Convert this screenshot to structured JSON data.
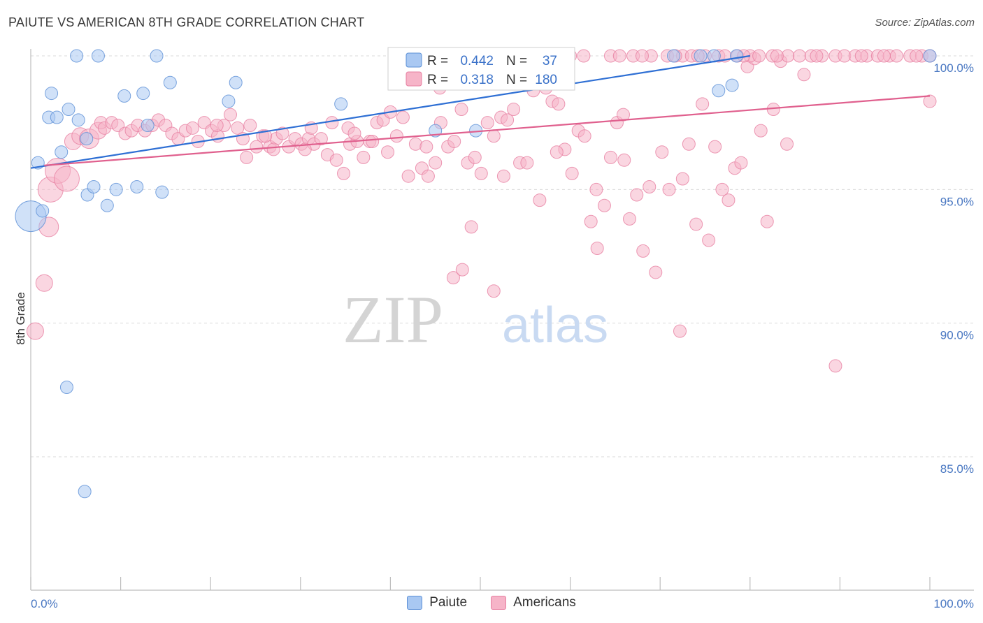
{
  "title": "PAIUTE VS AMERICAN 8TH GRADE CORRELATION CHART",
  "source": "Source: ZipAtlas.com",
  "watermark": {
    "zip": "ZIP",
    "atlas": "atlas"
  },
  "colors": {
    "paiute_fill": "#a9c8f2",
    "paiute_stroke": "#5b8fd6",
    "paiute_line": "#2e6fd4",
    "americans_fill": "#f6b4c8",
    "americans_stroke": "#e77fa1",
    "americans_line": "#e0608e",
    "tick_label": "#4a78c2",
    "grid": "#d9d9d9"
  },
  "legend": {
    "rows": [
      {
        "r_label": "R =",
        "r_value": "0.442",
        "n_label": "N =",
        "n_value": "37"
      },
      {
        "r_label": "R =",
        "r_value": "0.318",
        "n_label": "N =",
        "n_value": "180"
      }
    ]
  },
  "bottom_legend": [
    "Paiute",
    "Americans"
  ],
  "chart_data": {
    "type": "scatter",
    "title": "PAIUTE VS AMERICAN 8TH GRADE CORRELATION CHART",
    "xlabel": "",
    "ylabel": "8th Grade",
    "xlim": [
      0,
      100
    ],
    "ylim": [
      80.5,
      100.3
    ],
    "x_tick_labels": [
      "0.0%",
      "100.0%"
    ],
    "y_ticks": [
      85,
      90,
      95,
      100
    ],
    "y_tick_labels": [
      "85.0%",
      "90.0%",
      "95.0%",
      "100.0%"
    ],
    "grid": true,
    "legend_position": "top-center",
    "series": [
      {
        "name": "Paiute",
        "r": 0.442,
        "n": 37,
        "trend": {
          "x": [
            0,
            80
          ],
          "y": [
            95.8,
            100
          ]
        },
        "points": [
          [
            0,
            94.0,
            22
          ],
          [
            0.8,
            96.0,
            9
          ],
          [
            1.3,
            94.2,
            9
          ],
          [
            2.0,
            97.7,
            9
          ],
          [
            2.3,
            98.6,
            9
          ],
          [
            2.9,
            97.7,
            9
          ],
          [
            3.4,
            96.4,
            9
          ],
          [
            4.2,
            98.0,
            9
          ],
          [
            5.3,
            97.6,
            9
          ],
          [
            6.2,
            96.9,
            9
          ],
          [
            5.1,
            100,
            9
          ],
          [
            7.5,
            100,
            9
          ],
          [
            14.0,
            100,
            9
          ],
          [
            6.3,
            94.8,
            9
          ],
          [
            7.0,
            95.1,
            9
          ],
          [
            8.5,
            94.4,
            9
          ],
          [
            9.5,
            95.0,
            9
          ],
          [
            10.4,
            98.5,
            9
          ],
          [
            11.8,
            95.1,
            9
          ],
          [
            12.5,
            98.6,
            9
          ],
          [
            13.0,
            97.4,
            9
          ],
          [
            14.6,
            94.9,
            9
          ],
          [
            15.5,
            99.0,
            9
          ],
          [
            22.0,
            98.3,
            9
          ],
          [
            22.8,
            99.0,
            9
          ],
          [
            34.5,
            98.2,
            9
          ],
          [
            45.0,
            97.2,
            9
          ],
          [
            49.5,
            97.2,
            9
          ],
          [
            71.5,
            100,
            9
          ],
          [
            74.5,
            100,
            9
          ],
          [
            76.5,
            98.7,
            9
          ],
          [
            78.0,
            98.9,
            9
          ],
          [
            76.0,
            100,
            9
          ],
          [
            78.5,
            100,
            9
          ],
          [
            100,
            100,
            9
          ],
          [
            4.0,
            87.6,
            9
          ],
          [
            6.0,
            83.7,
            9
          ]
        ]
      },
      {
        "name": "Americans",
        "r": 0.318,
        "n": 180,
        "trend": {
          "x": [
            1.5,
            100
          ],
          "y": [
            95.9,
            98.5
          ]
        },
        "points": [
          [
            0.5,
            89.7,
            12
          ],
          [
            1.5,
            91.5,
            12
          ],
          [
            2.0,
            93.6,
            14
          ],
          [
            2.2,
            95.0,
            18
          ],
          [
            3.0,
            95.7,
            18
          ],
          [
            4.0,
            95.4,
            18
          ],
          [
            4.7,
            96.8,
            12
          ],
          [
            5.5,
            97.0,
            12
          ],
          [
            6.5,
            96.9,
            14
          ],
          [
            7.5,
            97.2,
            12
          ],
          [
            7.8,
            97.5,
            9
          ],
          [
            8.2,
            97.3,
            9
          ],
          [
            9.0,
            97.5,
            9
          ],
          [
            9.7,
            97.4,
            9
          ],
          [
            10.5,
            97.1,
            9
          ],
          [
            11.2,
            97.2,
            9
          ],
          [
            11.9,
            97.4,
            9
          ],
          [
            12.7,
            97.2,
            9
          ],
          [
            13.5,
            97.4,
            9
          ],
          [
            14.2,
            97.6,
            9
          ],
          [
            15.0,
            97.4,
            9
          ],
          [
            15.7,
            97.1,
            9
          ],
          [
            16.4,
            96.9,
            9
          ],
          [
            17.2,
            97.2,
            9
          ],
          [
            18.0,
            97.3,
            9
          ],
          [
            18.6,
            96.8,
            9
          ],
          [
            19.3,
            97.5,
            9
          ],
          [
            20.1,
            97.2,
            9
          ],
          [
            20.8,
            97.0,
            9
          ],
          [
            21.5,
            97.4,
            9
          ],
          [
            22.2,
            97.8,
            9
          ],
          [
            23.0,
            97.3,
            9
          ],
          [
            23.6,
            96.9,
            9
          ],
          [
            24.4,
            97.4,
            9
          ],
          [
            25.1,
            96.6,
            9
          ],
          [
            25.8,
            97.0,
            9
          ],
          [
            26.6,
            96.6,
            9
          ],
          [
            27.3,
            96.9,
            9
          ],
          [
            28.0,
            97.1,
            9
          ],
          [
            28.7,
            96.6,
            9
          ],
          [
            29.4,
            96.9,
            9
          ],
          [
            30.1,
            96.7,
            9
          ],
          [
            30.9,
            96.9,
            9
          ],
          [
            31.5,
            96.7,
            9
          ],
          [
            32.3,
            96.9,
            9
          ],
          [
            24.0,
            96.2,
            9
          ],
          [
            27.0,
            96.5,
            9
          ],
          [
            30.5,
            96.5,
            9
          ],
          [
            33.0,
            96.3,
            9
          ],
          [
            34.0,
            96.1,
            9
          ],
          [
            34.8,
            95.6,
            9
          ],
          [
            35.5,
            96.7,
            9
          ],
          [
            36.3,
            96.8,
            9
          ],
          [
            37.0,
            96.2,
            9
          ],
          [
            37.7,
            96.8,
            9
          ],
          [
            38.5,
            97.5,
            9
          ],
          [
            39.2,
            97.6,
            9
          ],
          [
            40.0,
            97.9,
            9
          ],
          [
            40.7,
            97.0,
            9
          ],
          [
            41.4,
            97.7,
            9
          ],
          [
            33.5,
            97.5,
            9
          ],
          [
            35.3,
            97.3,
            9
          ],
          [
            38.0,
            96.8,
            9
          ],
          [
            42.0,
            95.5,
            9
          ],
          [
            42.8,
            96.7,
            9
          ],
          [
            43.5,
            95.8,
            9
          ],
          [
            44.2,
            95.5,
            9
          ],
          [
            45.0,
            96.0,
            9
          ],
          [
            45.6,
            97.5,
            9
          ],
          [
            46.4,
            96.6,
            9
          ],
          [
            47.1,
            96.8,
            9
          ],
          [
            47.9,
            98.0,
            9
          ],
          [
            48.6,
            96.0,
            9
          ],
          [
            49.4,
            96.2,
            9
          ],
          [
            50.1,
            95.6,
            9
          ],
          [
            50.8,
            97.5,
            9
          ],
          [
            51.5,
            97.0,
            9
          ],
          [
            52.3,
            97.7,
            9
          ],
          [
            53.0,
            97.6,
            9
          ],
          [
            53.7,
            98.0,
            9
          ],
          [
            54.4,
            96.0,
            9
          ],
          [
            55.2,
            96.0,
            9
          ],
          [
            55.9,
            98.7,
            9
          ],
          [
            56.6,
            94.6,
            9
          ],
          [
            57.3,
            98.8,
            9
          ],
          [
            58.0,
            98.3,
            9
          ],
          [
            58.7,
            98.2,
            9
          ],
          [
            59.4,
            96.5,
            9
          ],
          [
            60.2,
            95.6,
            9
          ],
          [
            60.9,
            97.2,
            9
          ],
          [
            61.6,
            97.0,
            9
          ],
          [
            62.3,
            93.8,
            9
          ],
          [
            63.0,
            92.8,
            9
          ],
          [
            63.8,
            94.4,
            9
          ],
          [
            64.5,
            96.2,
            9
          ],
          [
            65.2,
            97.5,
            9
          ],
          [
            65.9,
            97.8,
            9
          ],
          [
            66.6,
            93.9,
            9
          ],
          [
            67.4,
            94.8,
            9
          ],
          [
            68.1,
            92.7,
            9
          ],
          [
            68.8,
            95.1,
            9
          ],
          [
            69.5,
            91.9,
            9
          ],
          [
            70.2,
            96.4,
            9
          ],
          [
            71.0,
            95.0,
            9
          ],
          [
            45.5,
            98.8,
            9
          ],
          [
            49.0,
            93.6,
            9
          ],
          [
            47.0,
            91.7,
            9
          ],
          [
            48.0,
            92.0,
            9
          ],
          [
            51.5,
            91.2,
            9
          ],
          [
            55.0,
            99.0,
            9
          ],
          [
            72.5,
            95.4,
            9
          ],
          [
            73.2,
            96.7,
            9
          ],
          [
            74.0,
            93.7,
            9
          ],
          [
            74.7,
            98.2,
            9
          ],
          [
            75.4,
            93.1,
            9
          ],
          [
            76.1,
            96.6,
            9
          ],
          [
            76.9,
            95.0,
            9
          ],
          [
            77.6,
            94.6,
            9
          ],
          [
            78.3,
            95.8,
            9
          ],
          [
            79.0,
            96.0,
            9
          ],
          [
            79.7,
            99.6,
            9
          ],
          [
            80.5,
            99.9,
            9
          ],
          [
            81.2,
            97.2,
            9
          ],
          [
            81.9,
            93.8,
            9
          ],
          [
            82.6,
            98.0,
            9
          ],
          [
            83.4,
            99.8,
            9
          ],
          [
            84.1,
            96.7,
            9
          ],
          [
            72.2,
            89.7,
            9
          ],
          [
            86.0,
            99.3,
            9
          ],
          [
            89.5,
            88.4,
            9
          ],
          [
            100,
            98.3,
            9
          ],
          [
            61.5,
            100,
            9
          ],
          [
            64.5,
            100,
            9
          ],
          [
            67.0,
            100,
            9
          ],
          [
            69.0,
            100,
            9
          ],
          [
            70.8,
            100,
            9
          ],
          [
            72.5,
            100,
            9
          ],
          [
            73.5,
            100,
            9
          ],
          [
            75.0,
            100,
            9
          ],
          [
            76.5,
            100,
            9
          ],
          [
            77.2,
            100,
            9
          ],
          [
            78.6,
            100,
            9
          ],
          [
            80.0,
            100,
            9
          ],
          [
            81.0,
            100,
            9
          ],
          [
            82.5,
            100,
            9
          ],
          [
            84.2,
            100,
            9
          ],
          [
            85.5,
            100,
            9
          ],
          [
            86.8,
            100,
            9
          ],
          [
            88.0,
            100,
            9
          ],
          [
            89.5,
            100,
            9
          ],
          [
            90.5,
            100,
            9
          ],
          [
            91.7,
            100,
            9
          ],
          [
            93.0,
            100,
            9
          ],
          [
            94.2,
            100,
            9
          ],
          [
            95.5,
            100,
            9
          ],
          [
            96.3,
            100,
            9
          ],
          [
            97.8,
            100,
            9
          ],
          [
            99.1,
            100,
            9
          ],
          [
            100,
            100,
            9
          ],
          [
            65.5,
            100,
            9
          ],
          [
            68.0,
            100,
            9
          ],
          [
            71.7,
            100,
            9
          ],
          [
            74.2,
            100,
            9
          ],
          [
            79.3,
            100,
            9
          ],
          [
            83.0,
            100,
            9
          ],
          [
            87.4,
            100,
            9
          ],
          [
            92.4,
            100,
            9
          ],
          [
            94.9,
            100,
            9
          ],
          [
            98.5,
            100,
            9
          ],
          [
            60.0,
            100,
            9
          ],
          [
            20.7,
            97.4,
            9
          ],
          [
            26.1,
            97.0,
            9
          ],
          [
            31.2,
            97.3,
            9
          ],
          [
            36.0,
            97.1,
            9
          ],
          [
            39.7,
            96.4,
            9
          ],
          [
            44.0,
            96.6,
            9
          ],
          [
            52.6,
            95.5,
            9
          ],
          [
            58.5,
            96.4,
            9
          ],
          [
            62.9,
            95.0,
            9
          ],
          [
            66.0,
            96.1,
            9
          ]
        ]
      }
    ]
  }
}
